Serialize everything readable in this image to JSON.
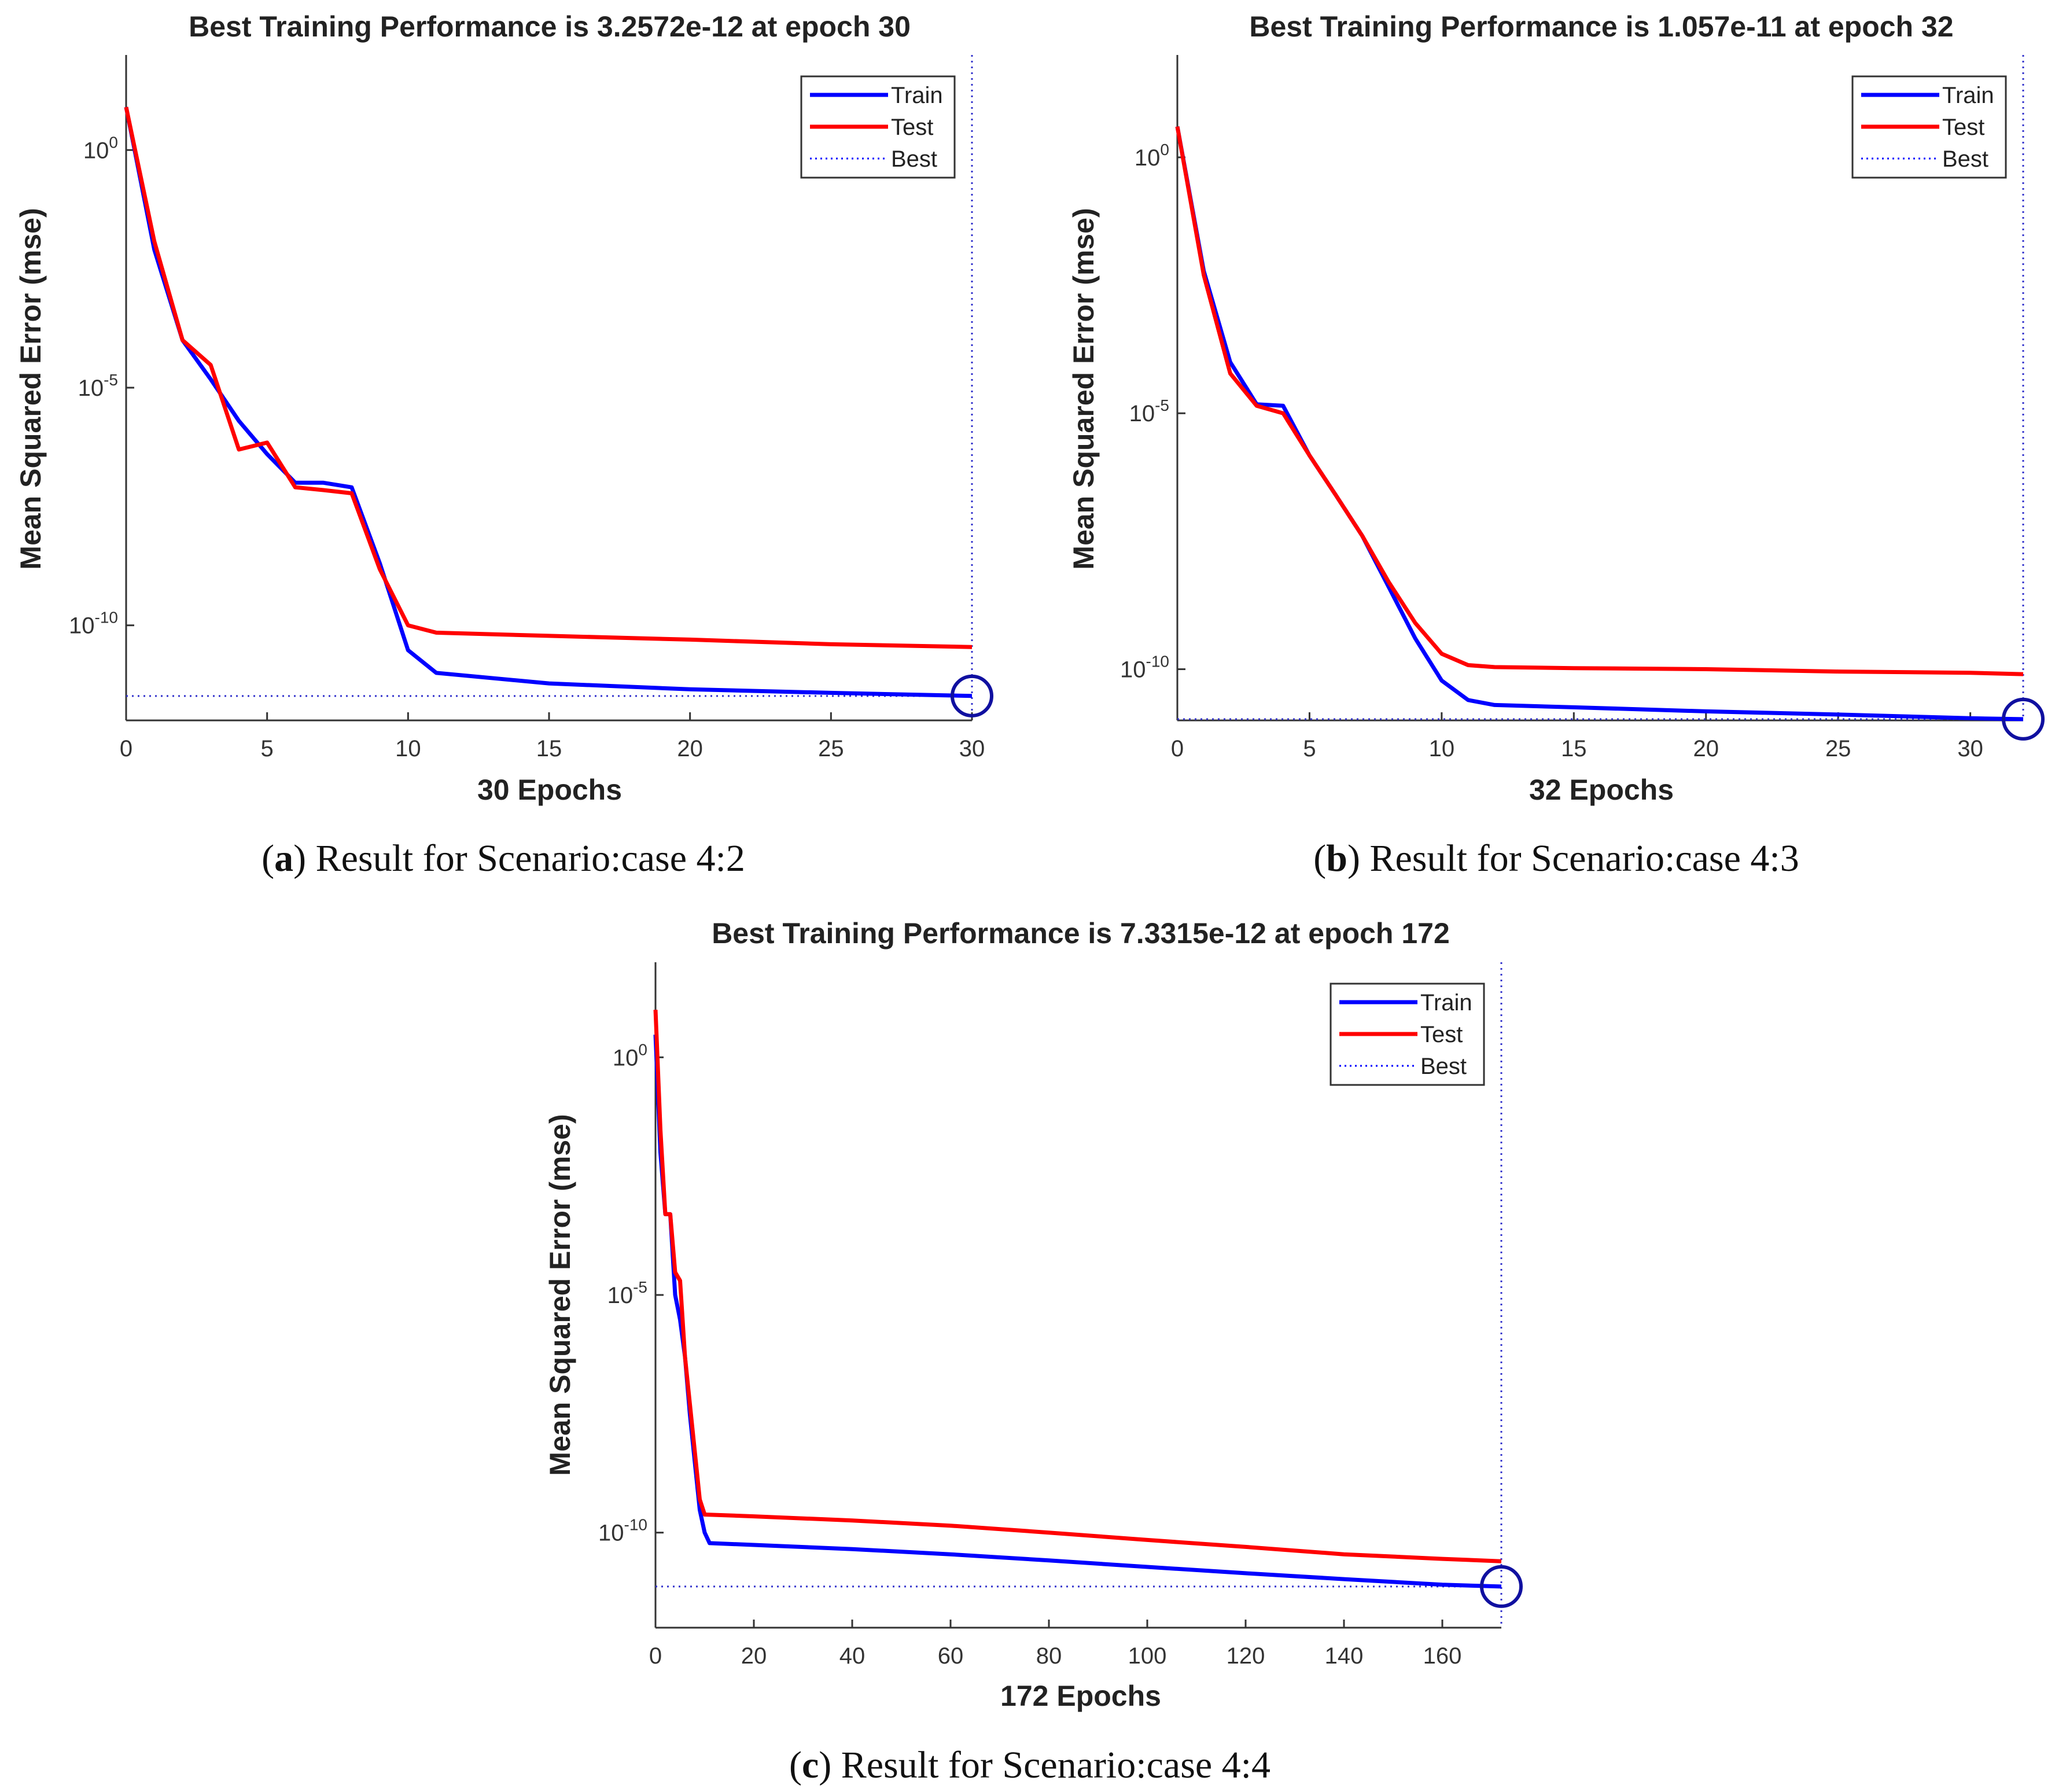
{
  "captions": [
    {
      "letter": "a",
      "text": "Result for Scenario:case 4:2"
    },
    {
      "letter": "b",
      "text": "Result for Scenario:case 4:3"
    },
    {
      "letter": "c",
      "text": "Result for Scenario:case 4:4"
    }
  ],
  "chart_data": [
    {
      "type": "line",
      "title": "Best Training Performance is 3.2572e-12 at epoch 30",
      "xlabel": "30 Epochs",
      "ylabel": "Mean Squared Error  (mse)",
      "xlim": [
        0,
        30
      ],
      "xticks": [
        0,
        5,
        10,
        15,
        20,
        25,
        30
      ],
      "ylim": [
        1e-12,
        100
      ],
      "yscale": "log",
      "yticks": [
        {
          "value": 1,
          "exp": "0"
        },
        {
          "value": 1e-05,
          "exp": "-5"
        },
        {
          "value": 1e-10,
          "exp": "-10"
        }
      ],
      "legend_position": "top-right",
      "legend": [
        "Train",
        "Test",
        "Best"
      ],
      "colors": {
        "Train": "#0000ff",
        "Test": "#ff0000",
        "Best": "#0000ff"
      },
      "best": {
        "epoch": 30,
        "value": 3.2572e-12
      },
      "series": [
        {
          "name": "Train",
          "x": [
            0,
            1,
            2,
            3,
            4,
            5,
            6,
            7,
            8,
            9,
            10,
            11,
            15,
            20,
            25,
            30
          ],
          "y": [
            8,
            0.008,
            0.0001,
            1.5e-05,
            2e-06,
            4e-07,
            1e-07,
            1e-07,
            8e-08,
            2e-09,
            3e-11,
            1e-11,
            6e-12,
            4.5e-12,
            3.8e-12,
            3.26e-12
          ]
        },
        {
          "name": "Test",
          "x": [
            0,
            1,
            2,
            3,
            4,
            5,
            6,
            7,
            8,
            9,
            10,
            11,
            15,
            20,
            25,
            30
          ],
          "y": [
            8,
            0.012,
            0.0001,
            3e-05,
            5e-07,
            7e-07,
            8e-08,
            7e-08,
            6e-08,
            1.5e-09,
            1e-10,
            7e-11,
            6e-11,
            5e-11,
            4e-11,
            3.5e-11
          ]
        }
      ]
    },
    {
      "type": "line",
      "title": "Best Training Performance is 1.057e-11 at epoch 32",
      "xlabel": "32 Epochs",
      "ylabel": "Mean Squared Error  (mse)",
      "xlim": [
        0,
        32
      ],
      "xticks": [
        0,
        5,
        10,
        15,
        20,
        25,
        30
      ],
      "ylim": [
        1e-11,
        100
      ],
      "yscale": "log",
      "yticks": [
        {
          "value": 1,
          "exp": "0"
        },
        {
          "value": 1e-05,
          "exp": "-5"
        },
        {
          "value": 1e-10,
          "exp": "-10"
        }
      ],
      "legend_position": "top-right",
      "legend": [
        "Train",
        "Test",
        "Best"
      ],
      "colors": {
        "Train": "#0000ff",
        "Test": "#ff0000",
        "Best": "#0000ff"
      },
      "best": {
        "epoch": 32,
        "value": 1.057e-11
      },
      "series": [
        {
          "name": "Train",
          "x": [
            0,
            1,
            2,
            3,
            4,
            5,
            6,
            7,
            8,
            9,
            10,
            11,
            12,
            15,
            20,
            25,
            30,
            32
          ],
          "y": [
            4,
            0.006,
            0.0001,
            1.5e-05,
            1.4e-05,
            1.5e-06,
            2.5e-07,
            4e-08,
            4e-09,
            4e-10,
            6e-11,
            2.5e-11,
            2e-11,
            1.8e-11,
            1.5e-11,
            1.3e-11,
            1.1e-11,
            1.057e-11
          ]
        },
        {
          "name": "Test",
          "x": [
            0,
            1,
            2,
            3,
            4,
            5,
            6,
            7,
            8,
            9,
            10,
            11,
            12,
            15,
            20,
            25,
            30,
            32
          ],
          "y": [
            4,
            0.005,
            6e-05,
            1.4e-05,
            1e-05,
            1.5e-06,
            2.5e-07,
            4e-08,
            5e-09,
            8e-10,
            2e-10,
            1.2e-10,
            1.1e-10,
            1.05e-10,
            1e-10,
            9e-11,
            8.5e-11,
            8e-11
          ]
        }
      ]
    },
    {
      "type": "line",
      "title": "Best Training Performance is 7.3315e-12 at epoch 172",
      "xlabel": "172 Epochs",
      "ylabel": "Mean Squared Error  (mse)",
      "xlim": [
        0,
        172
      ],
      "xticks": [
        0,
        20,
        40,
        60,
        80,
        100,
        120,
        140,
        160
      ],
      "ylim": [
        1e-12,
        100
      ],
      "yscale": "log",
      "yticks": [
        {
          "value": 1,
          "exp": "0"
        },
        {
          "value": 1e-05,
          "exp": "-5"
        },
        {
          "value": 1e-10,
          "exp": "-10"
        }
      ],
      "legend_position": "top-right",
      "legend": [
        "Train",
        "Test",
        "Best"
      ],
      "colors": {
        "Train": "#0000ff",
        "Test": "#ff0000",
        "Best": "#0000ff"
      },
      "best": {
        "epoch": 172,
        "value": 7.3315e-12
      },
      "series": [
        {
          "name": "Train",
          "x": [
            0,
            1,
            2,
            3,
            4,
            5,
            6,
            7,
            8,
            9,
            10,
            11,
            20,
            40,
            60,
            80,
            100,
            120,
            140,
            160,
            172
          ],
          "y": [
            3,
            0.01,
            0.0005,
            0.0005,
            1e-05,
            3e-06,
            5e-07,
            3e-08,
            3e-09,
            3e-10,
            1e-10,
            6e-11,
            5.5e-11,
            4.5e-11,
            3.5e-11,
            2.6e-11,
            1.9e-11,
            1.4e-11,
            1.05e-11,
            8e-12,
            7.33e-12
          ]
        },
        {
          "name": "Test",
          "x": [
            0,
            1,
            2,
            3,
            4,
            5,
            6,
            7,
            8,
            9,
            10,
            20,
            40,
            60,
            80,
            100,
            120,
            140,
            160,
            172
          ],
          "y": [
            10,
            0.03,
            0.0005,
            0.0005,
            3e-05,
            2e-05,
            5e-07,
            5e-08,
            5e-09,
            5e-10,
            2.4e-10,
            2.2e-10,
            1.8e-10,
            1.4e-10,
            1e-10,
            7e-11,
            5e-11,
            3.5e-11,
            2.8e-11,
            2.5e-11
          ]
        }
      ]
    }
  ]
}
